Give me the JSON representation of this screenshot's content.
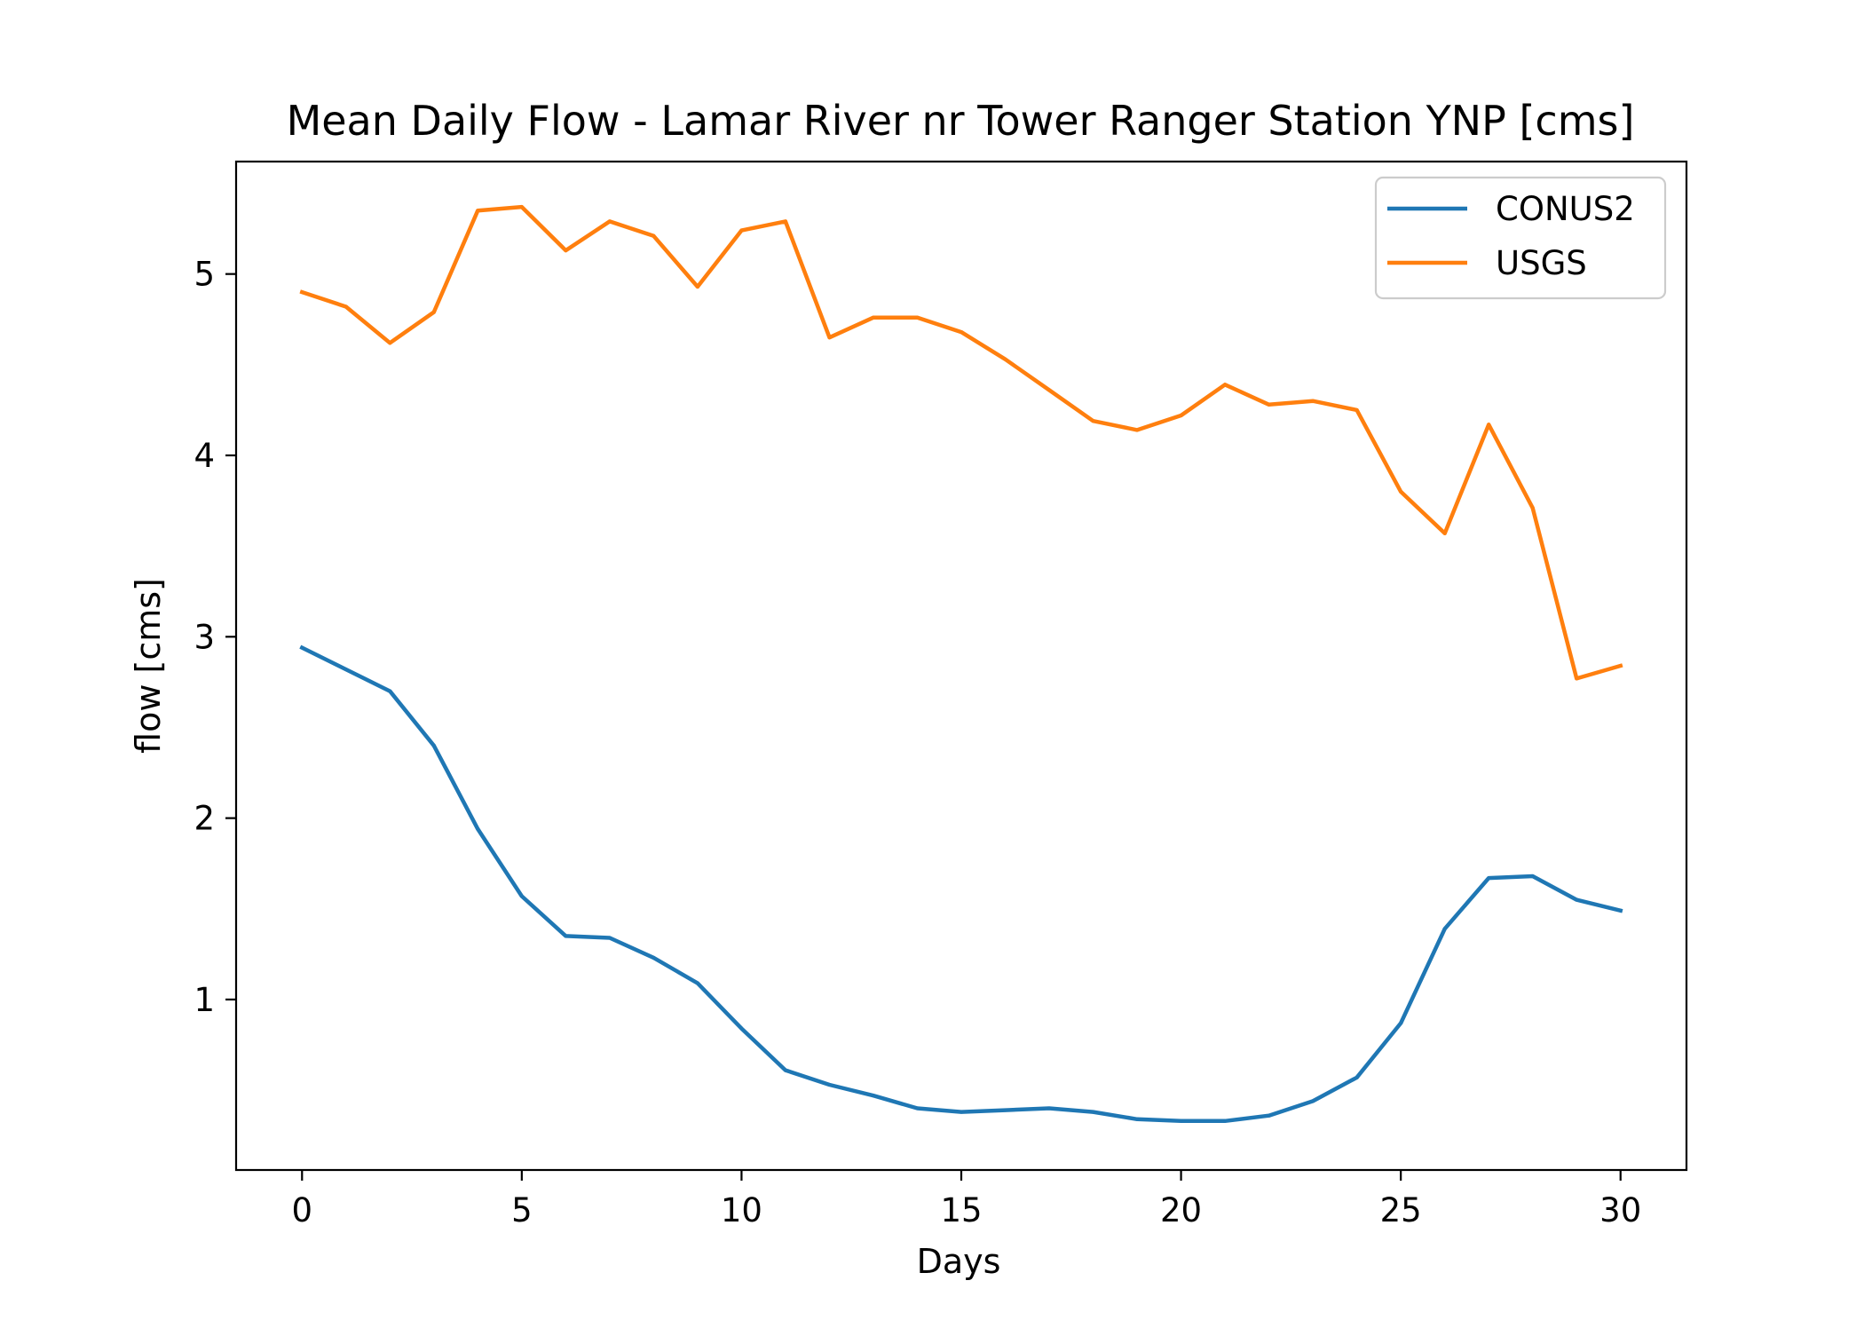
{
  "chart_data": {
    "type": "line",
    "title": "Mean Daily Flow - Lamar River nr Tower Ranger Station YNP [cms]",
    "xlabel": "Days",
    "ylabel": "flow [cms]",
    "xlim": [
      -1.5,
      31.5
    ],
    "ylim": [
      0.06,
      5.62
    ],
    "xticks": [
      0,
      5,
      10,
      15,
      20,
      25,
      30
    ],
    "xtick_labels": [
      "0",
      "5",
      "10",
      "15",
      "20",
      "25",
      "30"
    ],
    "yticks": [
      1,
      2,
      3,
      4,
      5
    ],
    "ytick_labels": [
      "1",
      "2",
      "3",
      "4",
      "5"
    ],
    "grid": false,
    "legend": "upper right",
    "x": [
      0,
      1,
      2,
      3,
      4,
      5,
      6,
      7,
      8,
      9,
      10,
      11,
      12,
      13,
      14,
      15,
      16,
      17,
      18,
      19,
      20,
      21,
      22,
      23,
      24,
      25,
      26,
      27,
      28,
      29,
      30
    ],
    "series": [
      {
        "name": "CONUS2",
        "color": "#1f77b4",
        "values": [
          2.94,
          2.82,
          2.7,
          2.4,
          1.94,
          1.57,
          1.35,
          1.34,
          1.23,
          1.09,
          0.84,
          0.61,
          0.53,
          0.47,
          0.4,
          0.38,
          0.39,
          0.4,
          0.38,
          0.34,
          0.33,
          0.33,
          0.36,
          0.44,
          0.57,
          0.87,
          1.39,
          1.67,
          1.68,
          1.55,
          1.49
        ]
      },
      {
        "name": "USGS",
        "color": "#ff7f0e",
        "values": [
          4.9,
          4.82,
          4.62,
          4.79,
          5.35,
          5.37,
          5.13,
          5.29,
          5.21,
          4.93,
          5.24,
          5.29,
          4.65,
          4.76,
          4.76,
          4.68,
          4.53,
          4.36,
          4.19,
          4.14,
          4.22,
          4.39,
          4.28,
          4.3,
          4.25,
          3.8,
          3.57,
          4.17,
          3.71,
          2.77,
          2.84
        ]
      }
    ]
  }
}
